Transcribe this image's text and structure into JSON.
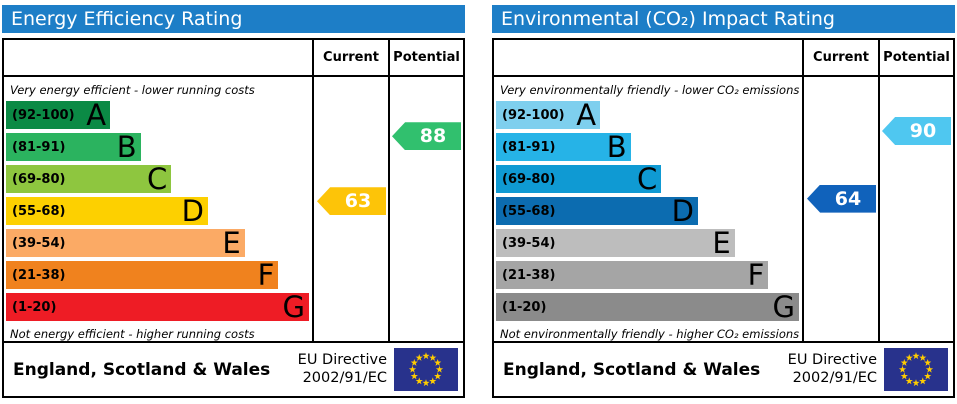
{
  "chart_data": [
    {
      "type": "bar",
      "title": "Energy Efficiency Rating",
      "categories": [
        "A",
        "B",
        "C",
        "D",
        "E",
        "F",
        "G"
      ],
      "band_ranges": [
        "92-100",
        "81-91",
        "69-80",
        "55-68",
        "39-54",
        "21-38",
        "1-20"
      ],
      "band_lengths_pct": [
        34,
        44,
        54,
        66,
        78,
        89,
        99
      ],
      "band_colors": [
        "#0b8a45",
        "#2bb35f",
        "#8ec63f",
        "#fdd000",
        "#fbaa65",
        "#f0821e",
        "#ee1c25"
      ],
      "current": 63,
      "potential": 88,
      "current_band": "D",
      "potential_band": "B",
      "legend": [
        "Current",
        "Potential"
      ],
      "caption_top": "Very energy efficient - lower running costs",
      "caption_bottom": "Not energy efficient - higher running costs"
    },
    {
      "type": "bar",
      "title": "Environmental (CO₂) Impact Rating",
      "categories": [
        "A",
        "B",
        "C",
        "D",
        "E",
        "F",
        "G"
      ],
      "band_ranges": [
        "92-100",
        "81-91",
        "69-80",
        "55-68",
        "39-54",
        "21-38",
        "1-20"
      ],
      "band_lengths_pct": [
        34,
        44,
        54,
        66,
        78,
        89,
        99
      ],
      "band_colors": [
        "#7ecfee",
        "#26b3e7",
        "#0f9ad3",
        "#0c6cb0",
        "#bdbdbd",
        "#a5a5a5",
        "#8b8b8b"
      ],
      "current": 64,
      "potential": 90,
      "current_band": "D",
      "potential_band": "B",
      "legend": [
        "Current",
        "Potential"
      ],
      "caption_top": "Very environmentally friendly - lower CO₂ emissions",
      "caption_bottom": "Not environmentally friendly - higher CO₂ emissions"
    }
  ],
  "colors": {
    "header_bg": "#1d7ec7",
    "flag_bg": "#28328c",
    "flag_star": "#ffcc00"
  },
  "panels": [
    {
      "title": "Energy Efficiency Rating",
      "columns": {
        "current": "Current",
        "potential": "Potential"
      },
      "caption_top": "Very energy efficient - lower running costs",
      "caption_bottom": "Not energy efficient - higher running costs",
      "bands": [
        {
          "letter": "A",
          "range": "(92-100)",
          "color": "#0b8a45",
          "width_pct": 34
        },
        {
          "letter": "B",
          "range": "(81-91)",
          "color": "#2bb35f",
          "width_pct": 44
        },
        {
          "letter": "C",
          "range": "(69-80)",
          "color": "#8ec63f",
          "width_pct": 54
        },
        {
          "letter": "D",
          "range": "(55-68)",
          "color": "#fdd000",
          "width_pct": 66
        },
        {
          "letter": "E",
          "range": "(39-54)",
          "color": "#fbaa65",
          "width_pct": 78
        },
        {
          "letter": "F",
          "range": "(21-38)",
          "color": "#f0821e",
          "width_pct": 89
        },
        {
          "letter": "G",
          "range": "(1-20)",
          "color": "#ee1c25",
          "width_pct": 99
        }
      ],
      "current": {
        "value": 63,
        "color": "#fdc408"
      },
      "potential": {
        "value": 88,
        "color": "#31c06e"
      },
      "footer": {
        "region": "England, Scotland & Wales",
        "directive_line1": "EU Directive",
        "directive_line2": "2002/91/EC"
      }
    },
    {
      "title": "Environmental (CO₂) Impact Rating",
      "columns": {
        "current": "Current",
        "potential": "Potential"
      },
      "caption_top": "Very environmentally friendly - lower CO₂ emissions",
      "caption_bottom": "Not environmentally friendly - higher CO₂ emissions",
      "bands": [
        {
          "letter": "A",
          "range": "(92-100)",
          "color": "#7ecfee",
          "width_pct": 34
        },
        {
          "letter": "B",
          "range": "(81-91)",
          "color": "#26b3e7",
          "width_pct": 44
        },
        {
          "letter": "C",
          "range": "(69-80)",
          "color": "#0f9ad3",
          "width_pct": 54
        },
        {
          "letter": "D",
          "range": "(55-68)",
          "color": "#0c6cb0",
          "width_pct": 66
        },
        {
          "letter": "E",
          "range": "(39-54)",
          "color": "#bdbdbd",
          "width_pct": 78
        },
        {
          "letter": "F",
          "range": "(21-38)",
          "color": "#a5a5a5",
          "width_pct": 89
        },
        {
          "letter": "G",
          "range": "(1-20)",
          "color": "#8b8b8b",
          "width_pct": 99
        }
      ],
      "current": {
        "value": 64,
        "color": "#1062bb"
      },
      "potential": {
        "value": 90,
        "color": "#4fc7f0"
      },
      "footer": {
        "region": "England, Scotland & Wales",
        "directive_line1": "EU Directive",
        "directive_line2": "2002/91/EC"
      }
    }
  ]
}
